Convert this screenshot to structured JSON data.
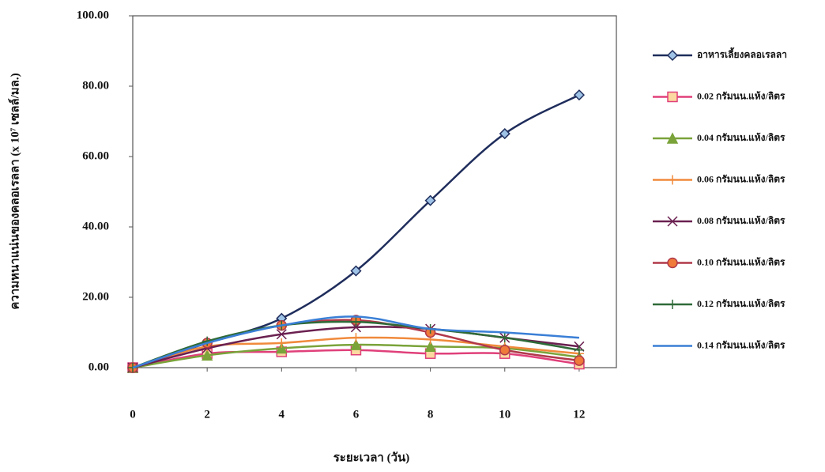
{
  "chart_data": {
    "type": "line",
    "x_label": "ระยะเวลา (วัน)",
    "y_label": "ความหนาแน่นของคลอเรลลา (x 10⁷ เซลล์/มล.)",
    "x": [
      0,
      2,
      4,
      6,
      8,
      10,
      12
    ],
    "xlim": [
      0,
      13
    ],
    "xticks": [
      0,
      2,
      4,
      6,
      8,
      10,
      12
    ],
    "ylim": [
      0,
      100
    ],
    "yticks": [
      {
        "value": 0,
        "label": "0.00"
      },
      {
        "value": 20,
        "label": "20.00"
      },
      {
        "value": 40,
        "label": "40.00"
      },
      {
        "value": 60,
        "label": "60.00"
      },
      {
        "value": 80,
        "label": "80.00"
      },
      {
        "value": 100,
        "label": "100.00"
      }
    ],
    "legend": "right",
    "series": [
      {
        "name": "อาหารเลี้ยงคลอเรลลา",
        "color": "#1f2d5c",
        "marker": "diamond",
        "values": [
          0,
          7,
          14,
          27.5,
          47.5,
          66.5,
          77.5
        ]
      },
      {
        "name": "0.02 กรัมนน.แห้ง/ลิตร",
        "color": "#e0407a",
        "marker": "square",
        "values": [
          0,
          4,
          4.5,
          5,
          4,
          4,
          1
        ]
      },
      {
        "name": "0.04 กรัมนน.แห้ง/ลิตร",
        "color": "#7aa33a",
        "marker": "triangle",
        "values": [
          0,
          3.5,
          5.5,
          6.5,
          6,
          5.5,
          3
        ]
      },
      {
        "name": "0.06 กรัมนน.แห้ง/ลิตร",
        "color": "#f08a3c",
        "marker": "plus",
        "values": [
          0,
          6,
          7,
          8.5,
          8,
          6,
          4
        ]
      },
      {
        "name": "0.08 กรัมนน.แห้ง/ลิตร",
        "color": "#6a2050",
        "marker": "x",
        "values": [
          0,
          5.5,
          9.5,
          11.5,
          11,
          8.5,
          6
        ]
      },
      {
        "name": "0.10 กรัมนน.แห้ง/ลิตร",
        "color": "#b0384a",
        "marker": "circle",
        "values": [
          0,
          7,
          12,
          13.5,
          10,
          5,
          2
        ]
      },
      {
        "name": "0.12 กรัมนน.แห้ง/ลิตร",
        "color": "#2f6a38",
        "marker": "plus",
        "values": [
          0,
          7.5,
          12,
          13,
          11,
          8.5,
          5
        ]
      },
      {
        "name": "0.14 กรัมนน.แห้ง/ลิตร",
        "color": "#3a7fd6",
        "marker": "none",
        "values": [
          0,
          7,
          12,
          14.5,
          11,
          10,
          8.5
        ]
      }
    ]
  }
}
